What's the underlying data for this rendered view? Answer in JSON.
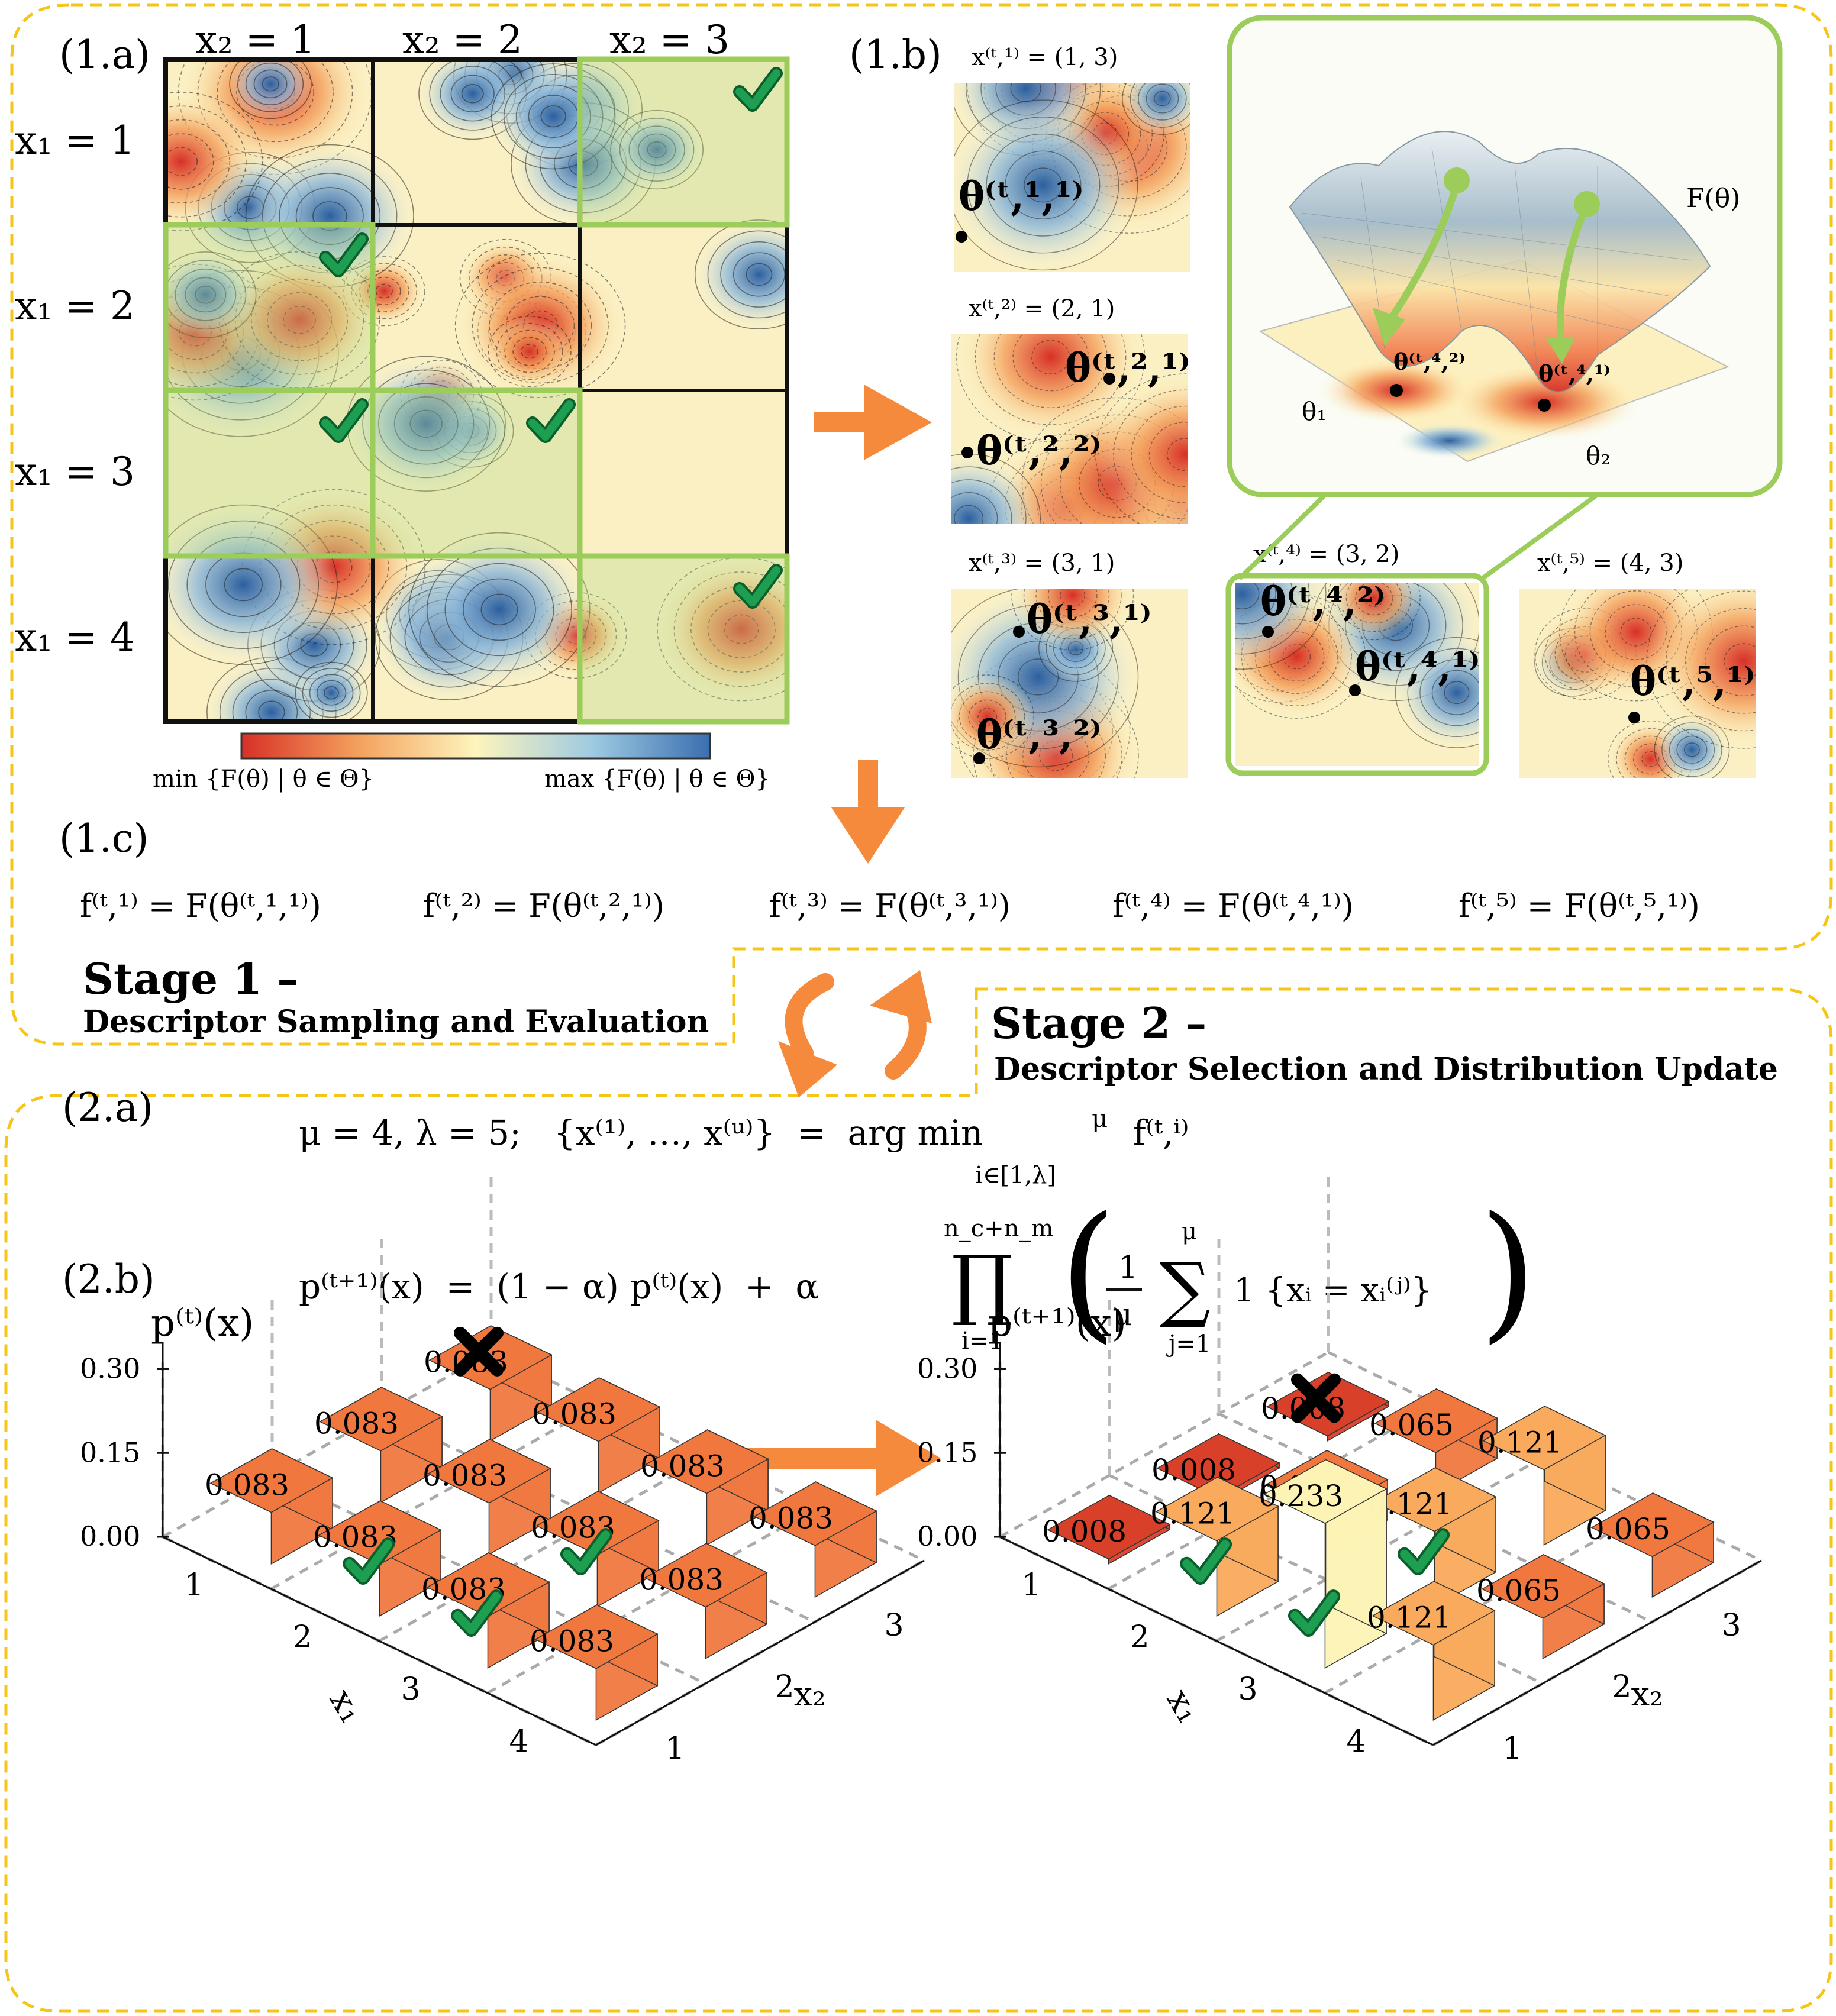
{
  "panel_1a": {
    "label": "(1.a)",
    "col_labels": [
      "x₂ = 1",
      "x₂ = 2",
      "x₂ = 3"
    ],
    "row_labels": [
      "x₁ = 1",
      "x₁ = 2",
      "x₁ = 3",
      "x₁ = 4"
    ],
    "selected_cells": [
      [
        1,
        3
      ],
      [
        2,
        1
      ],
      [
        3,
        1
      ],
      [
        3,
        2
      ],
      [
        4,
        3
      ]
    ],
    "colorbar_min": "min {F(θ) | θ ∈ Θ}",
    "colorbar_max": "max {F(θ) | θ ∈ Θ}"
  },
  "panel_1b": {
    "label": "(1.b)",
    "samples": [
      {
        "title": "x⁽ᵗ,¹⁾ = (1, 3)",
        "points": [
          "θ⁽ᵗ,¹,¹⁾"
        ]
      },
      {
        "title": "x⁽ᵗ,²⁾ = (2, 1)",
        "points": [
          "θ⁽ᵗ,²,¹⁾",
          "θ⁽ᵗ,²,²⁾"
        ]
      },
      {
        "title": "x⁽ᵗ,³⁾ = (3, 1)",
        "points": [
          "θ⁽ᵗ,³,¹⁾",
          "θ⁽ᵗ,³,²⁾"
        ]
      },
      {
        "title": "x⁽ᵗ,⁴⁾ = (3, 2)",
        "points": [
          "θ⁽ᵗ,⁴,²⁾",
          "θ⁽ᵗ,⁴,¹⁾"
        ]
      },
      {
        "title": "x⁽ᵗ,⁵⁾ = (4, 3)",
        "points": [
          "θ⁽ᵗ,⁵,¹⁾"
        ]
      }
    ],
    "surface": {
      "z_label": "F(θ)",
      "axis_1": "θ₁",
      "axis_2": "θ₂",
      "point_a": "θ⁽ᵗ,⁴,²⁾",
      "point_b": "θ⁽ᵗ,⁴,¹⁾"
    }
  },
  "panel_1c": {
    "label": "(1.c)",
    "equations": [
      "f⁽ᵗ,¹⁾ = F(θ⁽ᵗ,¹,¹⁾)",
      "f⁽ᵗ,²⁾ = F(θ⁽ᵗ,²,¹⁾)",
      "f⁽ᵗ,³⁾ = F(θ⁽ᵗ,³,¹⁾)",
      "f⁽ᵗ,⁴⁾ = F(θ⁽ᵗ,⁴,¹⁾)",
      "f⁽ᵗ,⁵⁾ = F(θ⁽ᵗ,⁵,¹⁾)"
    ]
  },
  "stage1": {
    "title": "Stage 1 –",
    "subtitle": "Descriptor Sampling and Evaluation"
  },
  "stage2": {
    "title": "Stage 2 –",
    "subtitle": "Descriptor Selection and Distribution Update"
  },
  "panel_2a": {
    "label": "(2.a)",
    "lhs": "μ = 4, λ = 5;   {x⁽¹⁾, …, x⁽ᵘ⁾}  =  arg min",
    "sup": "μ",
    "sub": "i∈[1,λ]",
    "rhs": "f⁽ᵗ,ⁱ⁾"
  },
  "panel_2b": {
    "label": "(2.b)",
    "lhs": "p⁽ᵗ⁺¹⁾(x)  =  (1 − α) p⁽ᵗ⁾(x)  +  α",
    "prod_top": "n_c+n_m",
    "prod_bottom": "i=1",
    "frac_num": "1",
    "frac_den": "μ",
    "sum_top": "μ",
    "sum_bottom": "j=1",
    "inner": "1 {xᵢ = xᵢ⁽ʲ⁾}"
  },
  "bars_before": {
    "z_label": "p⁽ᵗ⁾(x)",
    "z_ticks": [
      "0.30",
      "0.15",
      "0.00"
    ],
    "x1_label": "x₁",
    "x2_label": "x₂",
    "x1_ticks": [
      "1",
      "2",
      "3",
      "4"
    ],
    "x2_ticks": [
      "1",
      "2",
      "3"
    ],
    "values": [
      [
        0.083,
        0.083,
        0.083
      ],
      [
        0.083,
        0.083,
        0.083
      ],
      [
        0.083,
        0.083,
        0.083
      ],
      [
        0.083,
        0.083,
        0.083
      ]
    ],
    "labels": [
      [
        "0.083",
        "0.083",
        "0.083"
      ],
      [
        "0.083",
        "0.083",
        "0.083"
      ],
      [
        "0.083",
        "0.083",
        "0.083"
      ],
      [
        "0.083",
        "0.083",
        "0.083"
      ]
    ]
  },
  "bars_after": {
    "z_label": "p⁽ᵗ⁺¹⁾(x)",
    "z_ticks": [
      "0.30",
      "0.15",
      "0.00"
    ],
    "x1_label": "x₁",
    "x2_label": "x₂",
    "x1_ticks": [
      "1",
      "2",
      "3",
      "4"
    ],
    "x2_ticks": [
      "1",
      "2",
      "3"
    ],
    "values": [
      [
        0.008,
        0.008,
        0.008
      ],
      [
        0.121,
        0.065,
        0.065
      ],
      [
        0.233,
        0.121,
        0.121
      ],
      [
        0.121,
        0.065,
        0.065
      ]
    ],
    "labels": [
      [
        "0.008",
        "0.008",
        "0.008"
      ],
      [
        "0.121",
        "0.065",
        "0.065"
      ],
      [
        "0.233",
        "0.121",
        "0.121"
      ],
      [
        "0.121",
        "0.065",
        "0.065"
      ]
    ]
  },
  "checks": [
    [
      2,
      1
    ],
    [
      3,
      1
    ],
    [
      3,
      2
    ]
  ],
  "crosses": [
    [
      1,
      3
    ]
  ],
  "colors": {
    "green": "#9ccc5a",
    "orange": "#f58a3c",
    "yellow_dash": "#f5c518",
    "check": "#1e9e50"
  }
}
